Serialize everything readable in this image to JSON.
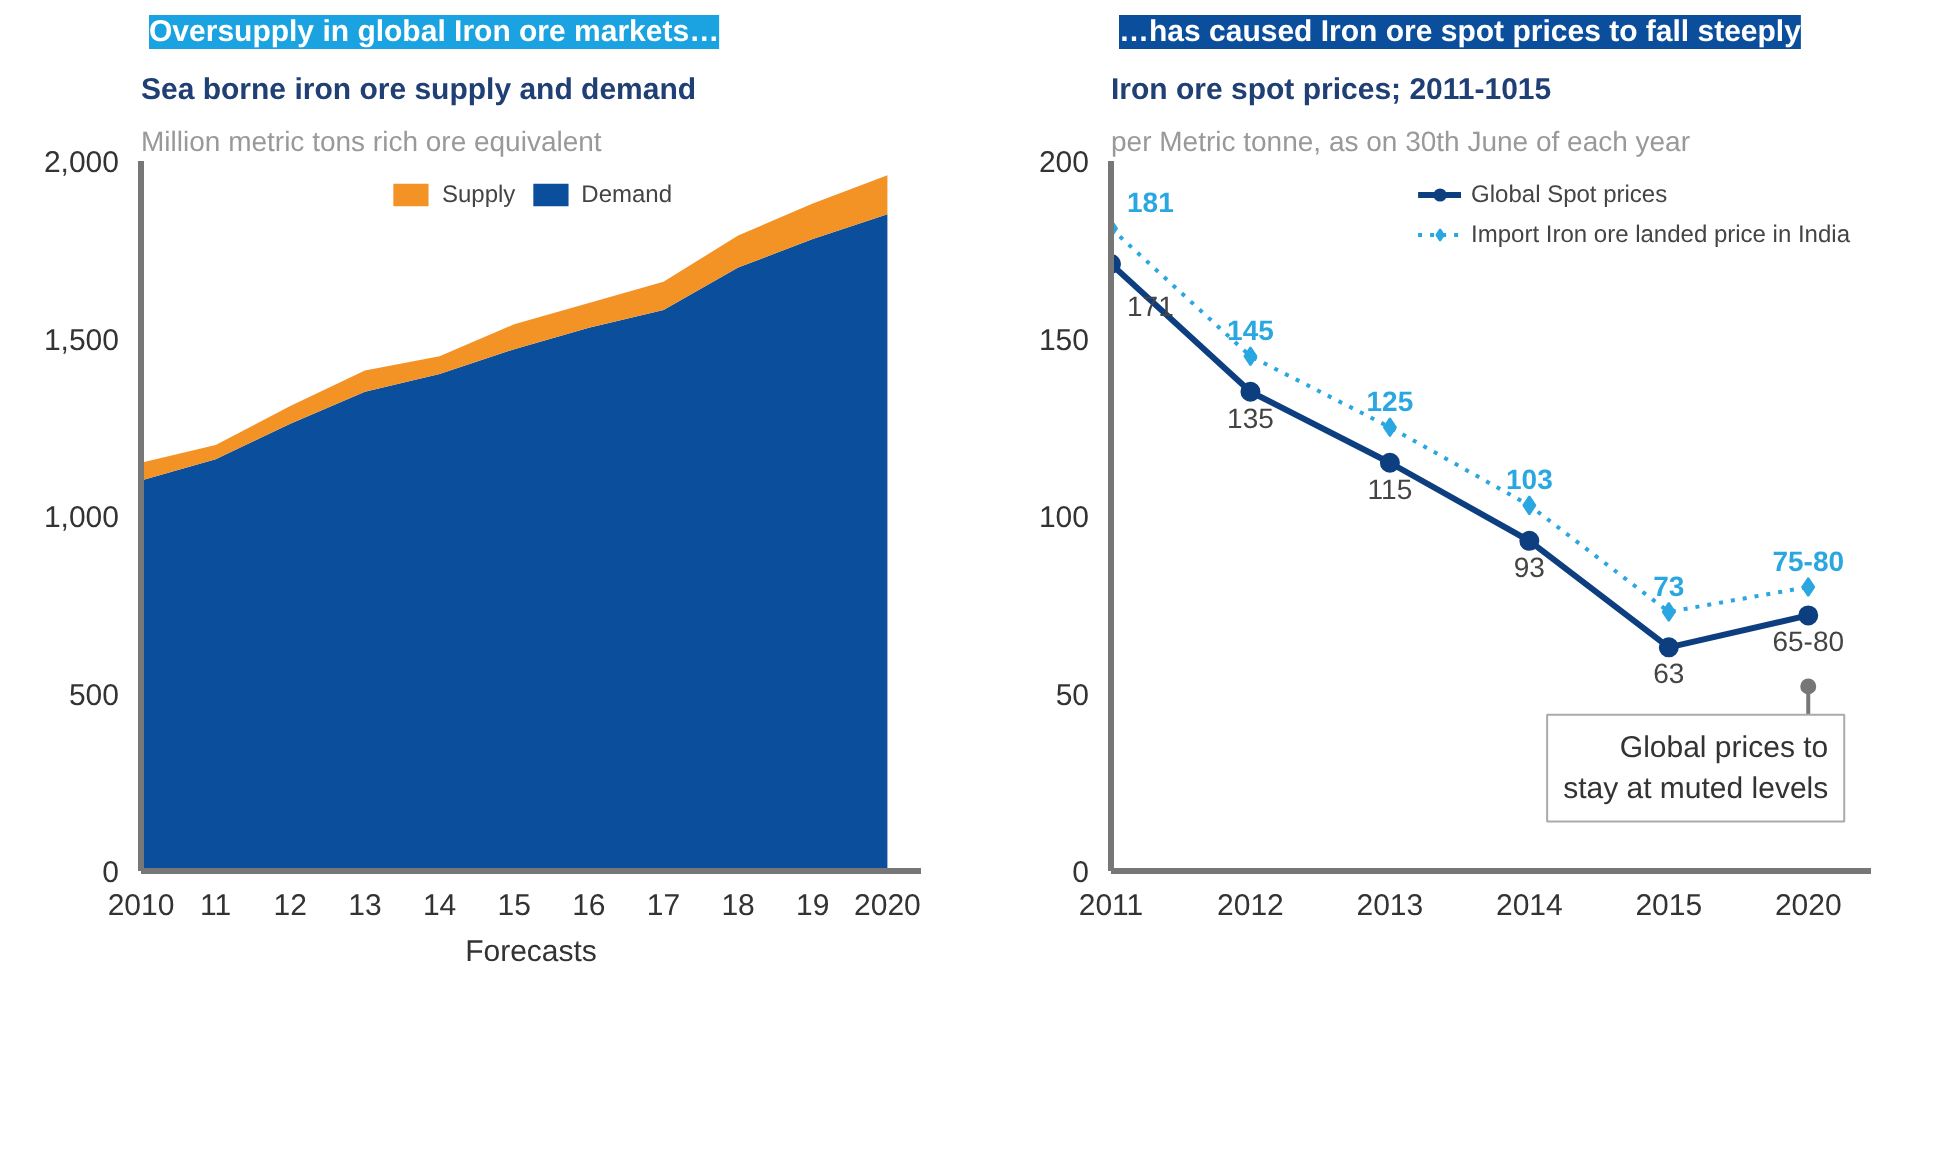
{
  "chart_data": [
    {
      "type": "area",
      "title": "Oversupply in global Iron ore markets…",
      "subtitle": "Sea borne iron ore supply and demand",
      "ylabel": "Million metric tons rich ore equivalent",
      "categories": [
        "2010",
        "11",
        "12",
        "13",
        "14",
        "15",
        "16",
        "17",
        "18",
        "19",
        "2020"
      ],
      "stacked": true,
      "series": [
        {
          "name": "Demand",
          "color": "#0b4f9c",
          "values": [
            1100,
            1160,
            1260,
            1350,
            1400,
            1470,
            1530,
            1580,
            1700,
            1780,
            1850
          ]
        },
        {
          "name": "Supply",
          "color": "#f39325",
          "values": [
            50,
            40,
            50,
            60,
            50,
            70,
            70,
            80,
            90,
            100,
            110
          ]
        }
      ],
      "ylim": [
        0,
        2000
      ],
      "yticks": [
        0,
        {
          "value": 500,
          "label": "500"
        },
        {
          "value": 1000,
          "label": "1,000"
        },
        {
          "value": 1500,
          "label": "1,500"
        },
        {
          "value": 2000,
          "label": "2,000"
        }
      ],
      "annotations": [
        "Forecasts"
      ],
      "legend": "top",
      "grid": false
    },
    {
      "type": "line",
      "title": "…has caused Iron ore spot prices to fall steeply",
      "subtitle": "Iron ore spot prices; 2011-1015",
      "ylabel": "per Metric tonne, as on 30th June of each year",
      "categories": [
        "2011",
        "2012",
        "2013",
        "2014",
        "2015",
        "2020"
      ],
      "series": [
        {
          "name": "Global Spot prices",
          "color": "#0d3f80",
          "values": [
            171,
            135,
            115,
            93,
            63,
            72
          ],
          "marker": "circle",
          "line_style": "solid",
          "value_labels": [
            "171",
            "135",
            "115",
            "93",
            "63",
            "65-80"
          ]
        },
        {
          "name": "Import Iron ore landed price in India",
          "color": "#2aa7e0",
          "values": [
            181,
            145,
            125,
            103,
            73,
            80
          ],
          "marker": "diamond",
          "line_style": "dotted",
          "value_labels": [
            "181",
            "145",
            "125",
            "103",
            "73",
            "75-80"
          ]
        }
      ],
      "ylim": [
        0,
        200
      ],
      "yticks": [
        0,
        50,
        100,
        150,
        200
      ],
      "annotations": [
        {
          "text": "Global prices to\nstay at muted levels",
          "x": "2020",
          "y": 52
        }
      ],
      "legend": "top right",
      "grid": false
    }
  ]
}
